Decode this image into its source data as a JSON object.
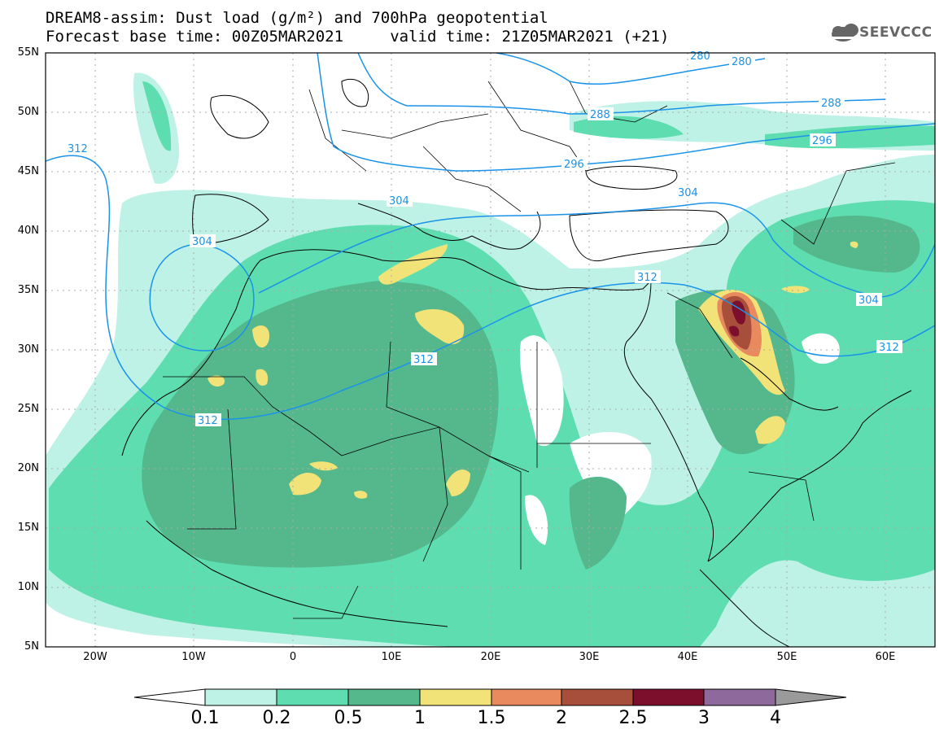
{
  "title": {
    "line1": "DREAM8-assim: Dust load (g/m²) and 700hPa geopotential",
    "line2": "Forecast base time: 00Z05MAR2021     valid time: 21Z05MAR2021 (+21)"
  },
  "logo": {
    "icon": "cloud-icon",
    "text": "SEEVCCC"
  },
  "axes": {
    "lat_labels": [
      "55N",
      "50N",
      "45N",
      "40N",
      "35N",
      "30N",
      "25N",
      "20N",
      "15N",
      "10N",
      "5N"
    ],
    "lon_labels": [
      "20W",
      "10W",
      "0",
      "10E",
      "20E",
      "30E",
      "40E",
      "50E",
      "60E"
    ]
  },
  "contour_labels": [
    "312",
    "304",
    "312",
    "312",
    "304",
    "296",
    "288",
    "288",
    "280",
    "288",
    "296",
    "304",
    "312",
    "304",
    "312",
    "280"
  ],
  "colorbar": {
    "ticks": [
      "0.1",
      "0.2",
      "0.5",
      "1",
      "1.5",
      "2",
      "2.5",
      "3",
      "4"
    ],
    "colors": [
      "#bff2e6",
      "#5edeb0",
      "#54b88c",
      "#f2e378",
      "#e88a5e",
      "#a84f3c",
      "#7b0f2c",
      "#8e6a9c",
      "#9a9a9a"
    ]
  },
  "colors": {
    "light": "#bff2e6",
    "mid": "#5edeb0",
    "dark": "#54b88c",
    "yellow": "#f2e378",
    "orange": "#e88a5e",
    "brown": "#a84f3c",
    "maroon": "#7b0f2c",
    "contour": "#1a93e8"
  }
}
